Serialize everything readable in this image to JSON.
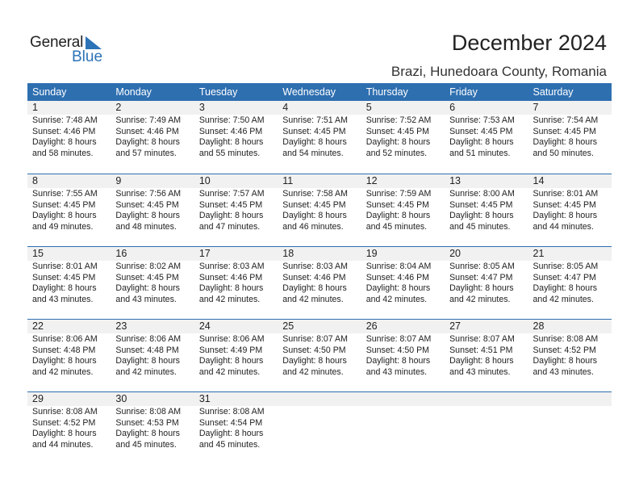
{
  "logo": {
    "text1": "General",
    "text2": "Blue"
  },
  "header": {
    "title": "December 2024",
    "location": "Brazi, Hunedoara County, Romania"
  },
  "colors": {
    "accent": "#2e6fb0",
    "day_band": "#f1f1f1"
  },
  "weekdays": [
    "Sunday",
    "Monday",
    "Tuesday",
    "Wednesday",
    "Thursday",
    "Friday",
    "Saturday"
  ],
  "days": [
    {
      "day": "1",
      "sunrise": "Sunrise: 7:48 AM",
      "sunset": "Sunset: 4:46 PM",
      "daylight1": "Daylight: 8 hours",
      "daylight2": "and 58 minutes."
    },
    {
      "day": "2",
      "sunrise": "Sunrise: 7:49 AM",
      "sunset": "Sunset: 4:46 PM",
      "daylight1": "Daylight: 8 hours",
      "daylight2": "and 57 minutes."
    },
    {
      "day": "3",
      "sunrise": "Sunrise: 7:50 AM",
      "sunset": "Sunset: 4:46 PM",
      "daylight1": "Daylight: 8 hours",
      "daylight2": "and 55 minutes."
    },
    {
      "day": "4",
      "sunrise": "Sunrise: 7:51 AM",
      "sunset": "Sunset: 4:45 PM",
      "daylight1": "Daylight: 8 hours",
      "daylight2": "and 54 minutes."
    },
    {
      "day": "5",
      "sunrise": "Sunrise: 7:52 AM",
      "sunset": "Sunset: 4:45 PM",
      "daylight1": "Daylight: 8 hours",
      "daylight2": "and 52 minutes."
    },
    {
      "day": "6",
      "sunrise": "Sunrise: 7:53 AM",
      "sunset": "Sunset: 4:45 PM",
      "daylight1": "Daylight: 8 hours",
      "daylight2": "and 51 minutes."
    },
    {
      "day": "7",
      "sunrise": "Sunrise: 7:54 AM",
      "sunset": "Sunset: 4:45 PM",
      "daylight1": "Daylight: 8 hours",
      "daylight2": "and 50 minutes."
    },
    {
      "day": "8",
      "sunrise": "Sunrise: 7:55 AM",
      "sunset": "Sunset: 4:45 PM",
      "daylight1": "Daylight: 8 hours",
      "daylight2": "and 49 minutes."
    },
    {
      "day": "9",
      "sunrise": "Sunrise: 7:56 AM",
      "sunset": "Sunset: 4:45 PM",
      "daylight1": "Daylight: 8 hours",
      "daylight2": "and 48 minutes."
    },
    {
      "day": "10",
      "sunrise": "Sunrise: 7:57 AM",
      "sunset": "Sunset: 4:45 PM",
      "daylight1": "Daylight: 8 hours",
      "daylight2": "and 47 minutes."
    },
    {
      "day": "11",
      "sunrise": "Sunrise: 7:58 AM",
      "sunset": "Sunset: 4:45 PM",
      "daylight1": "Daylight: 8 hours",
      "daylight2": "and 46 minutes."
    },
    {
      "day": "12",
      "sunrise": "Sunrise: 7:59 AM",
      "sunset": "Sunset: 4:45 PM",
      "daylight1": "Daylight: 8 hours",
      "daylight2": "and 45 minutes."
    },
    {
      "day": "13",
      "sunrise": "Sunrise: 8:00 AM",
      "sunset": "Sunset: 4:45 PM",
      "daylight1": "Daylight: 8 hours",
      "daylight2": "and 45 minutes."
    },
    {
      "day": "14",
      "sunrise": "Sunrise: 8:01 AM",
      "sunset": "Sunset: 4:45 PM",
      "daylight1": "Daylight: 8 hours",
      "daylight2": "and 44 minutes."
    },
    {
      "day": "15",
      "sunrise": "Sunrise: 8:01 AM",
      "sunset": "Sunset: 4:45 PM",
      "daylight1": "Daylight: 8 hours",
      "daylight2": "and 43 minutes."
    },
    {
      "day": "16",
      "sunrise": "Sunrise: 8:02 AM",
      "sunset": "Sunset: 4:45 PM",
      "daylight1": "Daylight: 8 hours",
      "daylight2": "and 43 minutes."
    },
    {
      "day": "17",
      "sunrise": "Sunrise: 8:03 AM",
      "sunset": "Sunset: 4:46 PM",
      "daylight1": "Daylight: 8 hours",
      "daylight2": "and 42 minutes."
    },
    {
      "day": "18",
      "sunrise": "Sunrise: 8:03 AM",
      "sunset": "Sunset: 4:46 PM",
      "daylight1": "Daylight: 8 hours",
      "daylight2": "and 42 minutes."
    },
    {
      "day": "19",
      "sunrise": "Sunrise: 8:04 AM",
      "sunset": "Sunset: 4:46 PM",
      "daylight1": "Daylight: 8 hours",
      "daylight2": "and 42 minutes."
    },
    {
      "day": "20",
      "sunrise": "Sunrise: 8:05 AM",
      "sunset": "Sunset: 4:47 PM",
      "daylight1": "Daylight: 8 hours",
      "daylight2": "and 42 minutes."
    },
    {
      "day": "21",
      "sunrise": "Sunrise: 8:05 AM",
      "sunset": "Sunset: 4:47 PM",
      "daylight1": "Daylight: 8 hours",
      "daylight2": "and 42 minutes."
    },
    {
      "day": "22",
      "sunrise": "Sunrise: 8:06 AM",
      "sunset": "Sunset: 4:48 PM",
      "daylight1": "Daylight: 8 hours",
      "daylight2": "and 42 minutes."
    },
    {
      "day": "23",
      "sunrise": "Sunrise: 8:06 AM",
      "sunset": "Sunset: 4:48 PM",
      "daylight1": "Daylight: 8 hours",
      "daylight2": "and 42 minutes."
    },
    {
      "day": "24",
      "sunrise": "Sunrise: 8:06 AM",
      "sunset": "Sunset: 4:49 PM",
      "daylight1": "Daylight: 8 hours",
      "daylight2": "and 42 minutes."
    },
    {
      "day": "25",
      "sunrise": "Sunrise: 8:07 AM",
      "sunset": "Sunset: 4:50 PM",
      "daylight1": "Daylight: 8 hours",
      "daylight2": "and 42 minutes."
    },
    {
      "day": "26",
      "sunrise": "Sunrise: 8:07 AM",
      "sunset": "Sunset: 4:50 PM",
      "daylight1": "Daylight: 8 hours",
      "daylight2": "and 43 minutes."
    },
    {
      "day": "27",
      "sunrise": "Sunrise: 8:07 AM",
      "sunset": "Sunset: 4:51 PM",
      "daylight1": "Daylight: 8 hours",
      "daylight2": "and 43 minutes."
    },
    {
      "day": "28",
      "sunrise": "Sunrise: 8:08 AM",
      "sunset": "Sunset: 4:52 PM",
      "daylight1": "Daylight: 8 hours",
      "daylight2": "and 43 minutes."
    },
    {
      "day": "29",
      "sunrise": "Sunrise: 8:08 AM",
      "sunset": "Sunset: 4:52 PM",
      "daylight1": "Daylight: 8 hours",
      "daylight2": "and 44 minutes."
    },
    {
      "day": "30",
      "sunrise": "Sunrise: 8:08 AM",
      "sunset": "Sunset: 4:53 PM",
      "daylight1": "Daylight: 8 hours",
      "daylight2": "and 45 minutes."
    },
    {
      "day": "31",
      "sunrise": "Sunrise: 8:08 AM",
      "sunset": "Sunset: 4:54 PM",
      "daylight1": "Daylight: 8 hours",
      "daylight2": "and 45 minutes."
    }
  ]
}
